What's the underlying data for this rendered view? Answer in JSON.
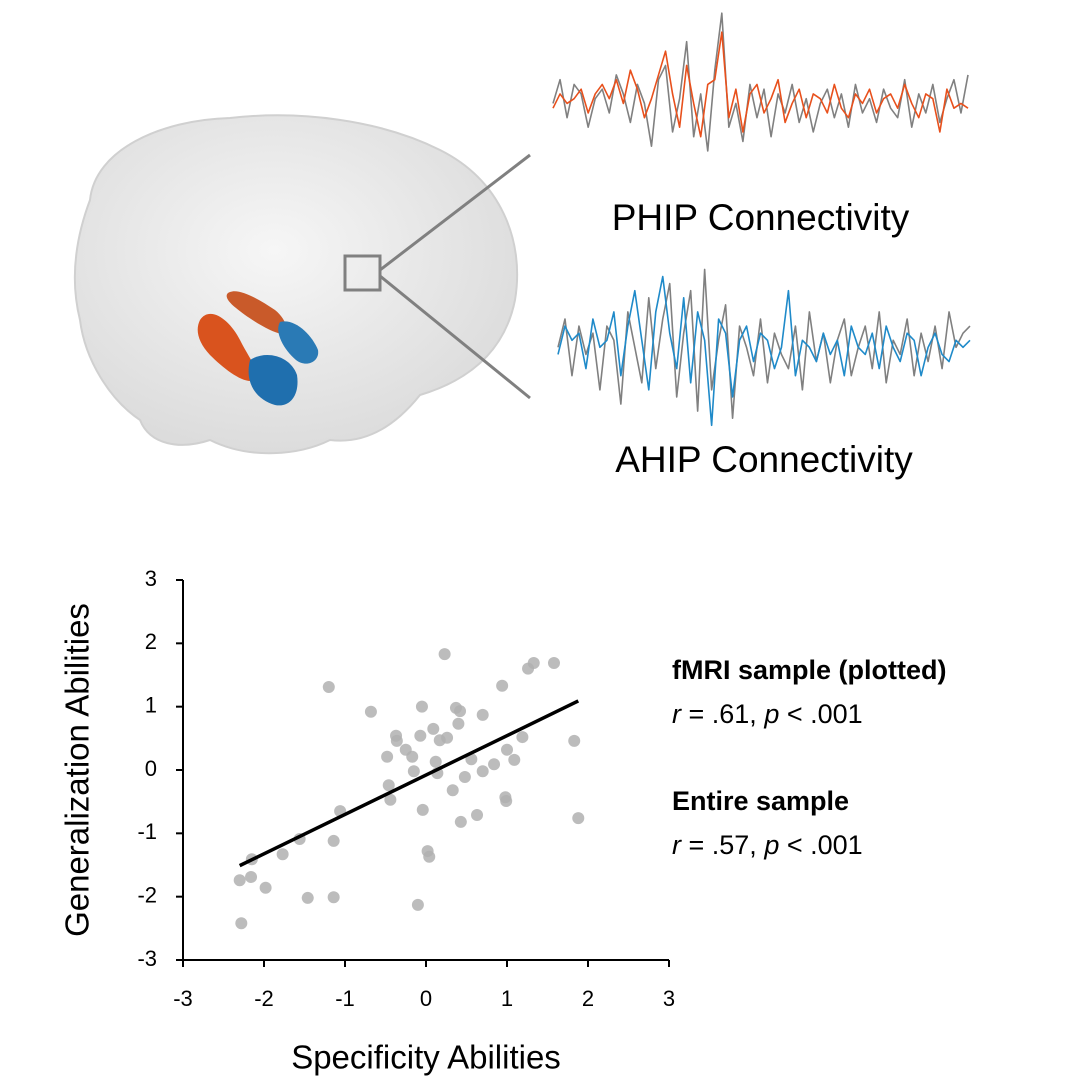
{
  "chart_data": [
    {
      "type": "scatter",
      "x_label": "Specificity Abilities",
      "y_label": "Generalization Abilities",
      "xlim": [
        -3,
        3
      ],
      "ylim": [
        -3,
        3
      ],
      "xticks": [
        -3,
        -2,
        -1,
        0,
        1,
        2,
        3
      ],
      "yticks": [
        -3,
        -2,
        -1,
        0,
        1,
        2,
        3
      ],
      "color": "#b0b0b0",
      "x": [
        -2.3,
        -2.28,
        -2.16,
        -2.15,
        -1.98,
        -1.77,
        -1.56,
        -1.46,
        -1.2,
        -1.14,
        -1.14,
        -1.06,
        -0.68,
        -0.48,
        -0.46,
        -0.44,
        -0.37,
        -0.36,
        -0.25,
        -0.17,
        -0.15,
        -0.1,
        -0.05,
        -0.07,
        -0.04,
        0.02,
        0.04,
        0.09,
        0.12,
        0.14,
        0.17,
        0.23,
        0.26,
        0.33,
        0.37,
        0.4,
        0.42,
        0.43,
        0.48,
        0.56,
        0.63,
        0.7,
        0.7,
        0.84,
        0.94,
        0.98,
        0.99,
        1.0,
        1.09,
        1.19,
        1.26,
        1.33,
        1.58,
        1.83,
        1.88
      ],
      "values": [
        -1.74,
        -2.42,
        -1.69,
        -1.41,
        -1.86,
        -1.33,
        -1.09,
        -2.02,
        1.31,
        -1.12,
        -2.01,
        -0.65,
        0.92,
        0.21,
        -0.24,
        -0.47,
        0.54,
        0.46,
        0.32,
        0.21,
        -0.02,
        -2.13,
        1.0,
        0.54,
        -0.63,
        -1.28,
        -1.37,
        0.65,
        0.13,
        -0.05,
        0.47,
        1.83,
        0.51,
        -0.32,
        0.98,
        0.73,
        0.93,
        -0.82,
        -0.11,
        0.17,
        -0.71,
        -0.02,
        0.87,
        0.09,
        1.33,
        -0.43,
        -0.49,
        0.32,
        0.16,
        0.52,
        1.6,
        1.69,
        1.69,
        0.46,
        -0.76
      ],
      "trendline": {
        "x": [
          -2.3,
          1.88
        ],
        "values": [
          -1.51,
          1.09
        ],
        "color": "#000000"
      },
      "annotations": [
        {
          "title": "fMRI sample (plotted)",
          "parts": [
            {
              "text": "r",
              "italic": true
            },
            {
              "text": " = .61, ",
              "italic": false
            },
            {
              "text": "p",
              "italic": true
            },
            {
              "text": " < .001",
              "italic": false
            }
          ]
        },
        {
          "title": "Entire sample",
          "parts": [
            {
              "text": "r",
              "italic": true
            },
            {
              "text": " = .57, ",
              "italic": false
            },
            {
              "text": "p",
              "italic": true
            },
            {
              "text": " < .001",
              "italic": false
            }
          ]
        }
      ]
    },
    {
      "type": "line",
      "title": "PHIP Connectivity",
      "series": [
        {
          "color": "#808080",
          "values": [
            0.1,
            0.6,
            -0.2,
            0.5,
            0.3,
            -0.4,
            0.2,
            0.4,
            -0.1,
            0.7,
            0.3,
            -0.3,
            0.5,
            0.1,
            -0.8,
            0.6,
            0.9,
            -0.5,
            0.2,
            1.4,
            -0.6,
            0.3,
            -0.9,
            0.8,
            2.0,
            -0.4,
            0.1,
            -0.7,
            0.5,
            -0.2,
            0.4,
            -0.6,
            0.3,
            -0.1,
            0.5,
            -0.3,
            0.2,
            -0.5,
            0.1,
            0.4,
            -0.2,
            0.3,
            -0.4,
            0.5,
            -0.1,
            0.2,
            -0.3,
            0.4,
            0.0,
            -0.2,
            0.6,
            -0.4,
            0.3,
            -0.1,
            0.5,
            -0.3,
            0.2,
            0.6,
            -0.1,
            0.7
          ]
        },
        {
          "color": "#e8501c",
          "values": [
            0.0,
            0.3,
            0.1,
            0.2,
            0.4,
            -0.1,
            0.3,
            0.5,
            0.2,
            0.6,
            0.1,
            0.8,
            0.4,
            -0.2,
            0.2,
            0.7,
            1.2,
            0.3,
            -0.4,
            0.9,
            0.1,
            -0.6,
            0.5,
            0.6,
            1.6,
            -0.2,
            0.4,
            -0.5,
            0.3,
            0.5,
            -0.1,
            0.2,
            0.6,
            -0.3,
            0.1,
            0.4,
            -0.2,
            0.3,
            0.2,
            -0.1,
            0.5,
            0.0,
            -0.2,
            0.3,
            0.1,
            0.4,
            -0.1,
            0.2,
            0.3,
            0.0,
            0.5,
            0.1,
            -0.2,
            0.3,
            0.2,
            -0.5,
            0.4,
            0.0,
            0.1,
            0.0
          ]
        }
      ]
    },
    {
      "type": "line",
      "title": "AHIP Connectivity",
      "series": [
        {
          "color": "#808080",
          "values": [
            0.1,
            0.5,
            -0.3,
            0.4,
            0.0,
            0.3,
            -0.5,
            0.4,
            0.2,
            -0.7,
            0.6,
            0.1,
            -0.4,
            0.8,
            -0.2,
            0.5,
            1.0,
            -0.6,
            0.3,
            0.9,
            -0.8,
            1.2,
            -0.5,
            0.2,
            0.7,
            -0.9,
            0.4,
            0.1,
            -0.3,
            0.5,
            -0.4,
            0.3,
            0.0,
            -0.2,
            0.4,
            -0.5,
            0.6,
            -0.1,
            0.3,
            -0.4,
            0.2,
            0.5,
            -0.3,
            0.1,
            0.4,
            -0.2,
            0.6,
            -0.4,
            0.2,
            0.0,
            0.5,
            -0.3,
            0.3,
            -0.1,
            0.4,
            -0.2,
            0.6,
            0.1,
            0.3,
            0.4
          ]
        },
        {
          "color": "#1f8ac9",
          "values": [
            0.0,
            0.4,
            0.2,
            0.3,
            -0.2,
            0.5,
            0.1,
            0.2,
            0.6,
            -0.3,
            0.4,
            0.9,
            0.2,
            -0.5,
            0.6,
            1.1,
            0.3,
            -0.2,
            0.8,
            -0.4,
            0.6,
            0.2,
            -1.0,
            0.5,
            0.3,
            -0.6,
            0.2,
            0.4,
            -0.1,
            0.3,
            0.2,
            -0.2,
            0.1,
            0.9,
            -0.3,
            0.2,
            0.1,
            -0.1,
            0.3,
            0.0,
            0.2,
            -0.3,
            0.4,
            0.1,
            0.0,
            0.3,
            -0.2,
            0.4,
            0.1,
            -0.1,
            0.3,
            0.2,
            -0.3,
            0.1,
            0.3,
            0.0,
            -0.1,
            0.2,
            0.1,
            0.2
          ]
        }
      ]
    }
  ]
}
